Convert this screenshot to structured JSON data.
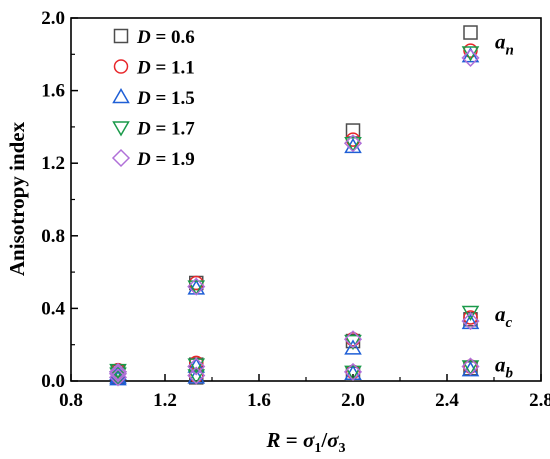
{
  "chart_data": {
    "type": "scatter",
    "title": "",
    "xlabel": {
      "var": "R",
      "eq": " = ",
      "num_sym": "σ",
      "num_sub": "1",
      "slash": "/",
      "den_sym": "σ",
      "den_sub": "3"
    },
    "ylabel": "Anisotropy index",
    "xlim": [
      0.8,
      2.8
    ],
    "ylim": [
      0.0,
      2.0
    ],
    "xticks": [
      "0.8",
      "1.2",
      "1.6",
      "2.0",
      "2.4",
      "2.8"
    ],
    "yticks": [
      "0.0",
      "0.4",
      "0.8",
      "1.2",
      "1.6",
      "2.0"
    ],
    "grid": false,
    "legend_position": "top-left",
    "legend_var": "D",
    "series": [
      {
        "name": "0.6",
        "marker": "square",
        "color": "#4d4d4d",
        "points": [
          [
            1.0,
            0.05
          ],
          [
            1.0,
            0.04
          ],
          [
            1.0,
            0.02
          ],
          [
            1.333,
            0.54
          ],
          [
            1.333,
            0.09
          ],
          [
            1.333,
            0.02
          ],
          [
            2.0,
            1.38
          ],
          [
            2.0,
            0.22
          ],
          [
            2.0,
            0.04
          ],
          [
            2.5,
            1.92
          ],
          [
            2.5,
            0.34
          ],
          [
            2.5,
            0.07
          ]
        ]
      },
      {
        "name": "1.1",
        "marker": "circle",
        "color": "#e8262a",
        "points": [
          [
            1.0,
            0.06
          ],
          [
            1.0,
            0.04
          ],
          [
            1.0,
            0.02
          ],
          [
            1.333,
            0.54
          ],
          [
            1.333,
            0.1
          ],
          [
            1.333,
            0.03
          ],
          [
            2.0,
            1.33
          ],
          [
            2.0,
            0.23
          ],
          [
            2.0,
            0.05
          ],
          [
            2.5,
            1.82
          ],
          [
            2.5,
            0.35
          ],
          [
            2.5,
            0.08
          ]
        ]
      },
      {
        "name": "1.5",
        "marker": "triangle-up",
        "color": "#1f5fd6",
        "points": [
          [
            1.0,
            0.04
          ],
          [
            1.0,
            0.02
          ],
          [
            1.0,
            0.01
          ],
          [
            1.333,
            0.51
          ],
          [
            1.333,
            0.08
          ],
          [
            1.333,
            0.02
          ],
          [
            2.0,
            1.29
          ],
          [
            2.0,
            0.18
          ],
          [
            2.0,
            0.04
          ],
          [
            2.5,
            1.79
          ],
          [
            2.5,
            0.32
          ],
          [
            2.5,
            0.06
          ]
        ]
      },
      {
        "name": "1.7",
        "marker": "triangle-down",
        "color": "#1a9a4a",
        "points": [
          [
            1.0,
            0.06
          ],
          [
            1.0,
            0.04
          ],
          [
            1.0,
            0.02
          ],
          [
            1.333,
            0.52
          ],
          [
            1.333,
            0.09
          ],
          [
            1.333,
            0.03
          ],
          [
            2.0,
            1.31
          ],
          [
            2.0,
            0.22
          ],
          [
            2.0,
            0.05
          ],
          [
            2.5,
            1.81
          ],
          [
            2.5,
            0.38
          ],
          [
            2.5,
            0.08
          ]
        ]
      },
      {
        "name": "1.9",
        "marker": "diamond",
        "color": "#b070d8",
        "points": [
          [
            1.0,
            0.05
          ],
          [
            1.0,
            0.04
          ],
          [
            1.0,
            0.02
          ],
          [
            1.333,
            0.52
          ],
          [
            1.333,
            0.08
          ],
          [
            1.333,
            0.03
          ],
          [
            2.0,
            1.31
          ],
          [
            2.0,
            0.23
          ],
          [
            2.0,
            0.05
          ],
          [
            2.5,
            1.78
          ],
          [
            2.5,
            0.33
          ],
          [
            2.5,
            0.08
          ]
        ]
      }
    ],
    "annotations": [
      {
        "base": "a",
        "sub": "n",
        "x": 2.6,
        "y": 1.87
      },
      {
        "base": "a",
        "sub": "c",
        "x": 2.6,
        "y": 0.37
      },
      {
        "base": "a",
        "sub": "b",
        "x": 2.6,
        "y": 0.09
      }
    ]
  }
}
